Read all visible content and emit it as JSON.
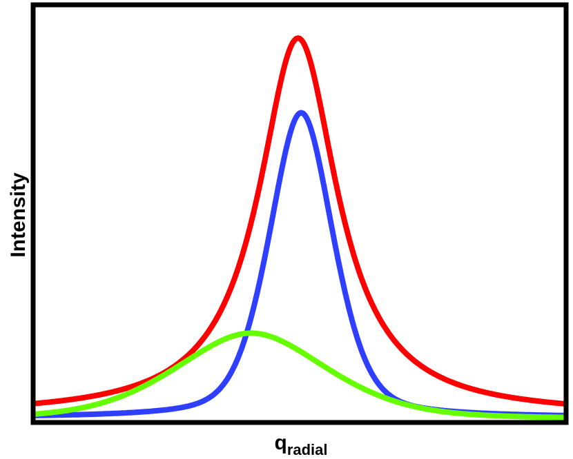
{
  "chart_data": {
    "type": "line",
    "title": "",
    "xlabel": "q",
    "xlabel_subscript": "radial",
    "ylabel": "Intensity",
    "ticks": "none",
    "grid": false,
    "legend": "none",
    "xlim": [
      0,
      1
    ],
    "ylim": [
      0,
      1
    ],
    "series": [
      {
        "color": "#ff0000",
        "peak_x": 0.497,
        "peak_y": 0.926,
        "width": 0.115,
        "baseline": 0.01,
        "shape": "lorentzian"
      },
      {
        "color": "#2f3fff",
        "peak_x": 0.503,
        "peak_y": 0.745,
        "width": 0.085,
        "baseline": 0.005,
        "shape": "gaussian-lorentzian"
      },
      {
        "color": "#66ff00",
        "peak_x": 0.408,
        "peak_y": 0.21,
        "width": 0.2,
        "baseline": 0.0,
        "shape": "gaussian-lorentzian"
      }
    ]
  }
}
